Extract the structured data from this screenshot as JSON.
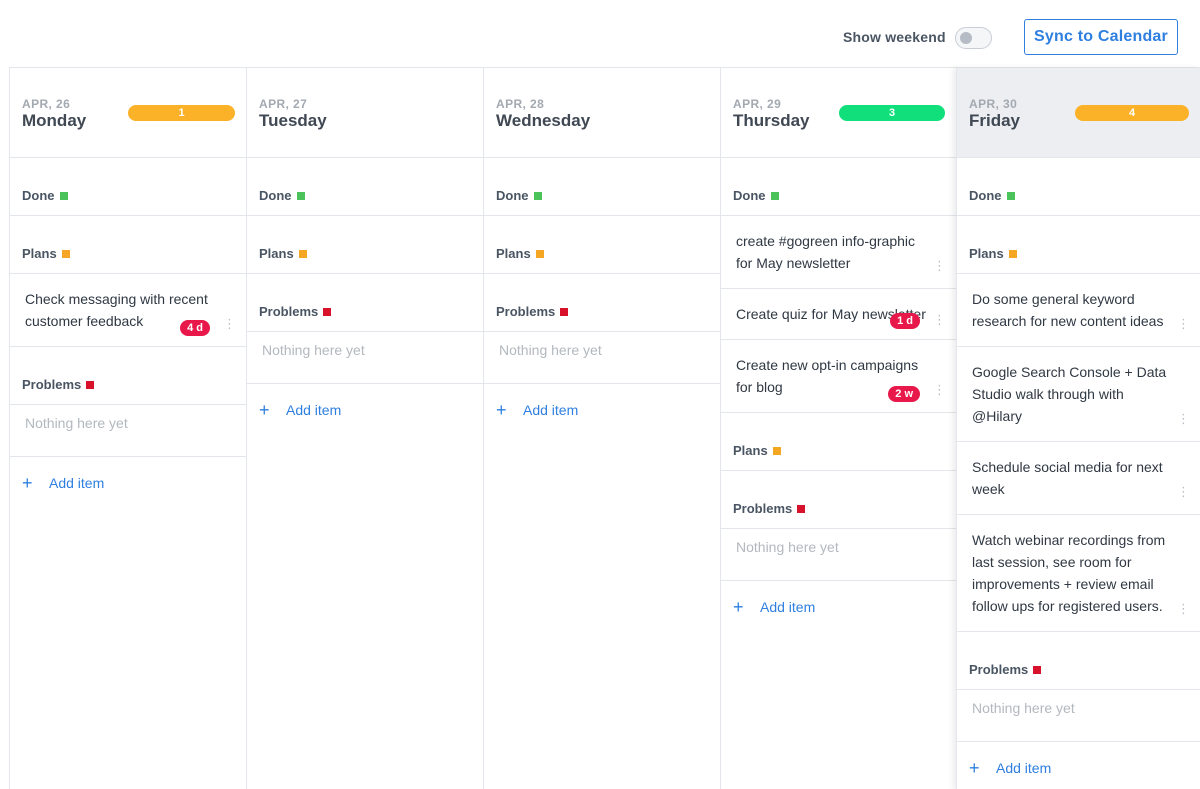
{
  "toolbar": {
    "show_weekend_label": "Show weekend",
    "show_weekend_on": false,
    "sync_button": "Sync to Calendar"
  },
  "colors": {
    "done": "#4cc35a",
    "plans": "#f5a623",
    "problems": "#d9122b",
    "accent": "#2e7fe0",
    "badge": "#e8194a",
    "count_orange": "#fbb228",
    "count_green": "#11df7b"
  },
  "labels": {
    "done": "Done",
    "plans": "Plans",
    "problems": "Problems",
    "empty": "Nothing here yet",
    "add_item": "Add item",
    "more_icon": "⋮",
    "plus_icon": "+"
  },
  "days": [
    {
      "date": "APR, 26",
      "name": "Monday",
      "count": "1",
      "count_color": "orange",
      "plans": [
        {
          "text": "Check messaging with recent customer feedback",
          "badge": "4 d"
        }
      ]
    },
    {
      "date": "APR, 27",
      "name": "Tuesday"
    },
    {
      "date": "APR, 28",
      "name": "Wednesday"
    },
    {
      "date": "APR, 29",
      "name": "Thursday",
      "count": "3",
      "count_color": "green",
      "done": [
        {
          "text": "create #gogreen info-graphic for May newsletter"
        },
        {
          "text": "Create quiz for May newsletter",
          "badge": "1 d"
        },
        {
          "text": "Create new opt-in campaigns for blog",
          "badge": "2 w"
        }
      ]
    },
    {
      "date": "APR, 30",
      "name": "Friday",
      "count": "4",
      "count_color": "orange",
      "today": true,
      "plans": [
        {
          "text": "Do some general keyword research for new content ideas"
        },
        {
          "text": "Google Search Console + Data Studio walk through with @Hilary"
        },
        {
          "text": "Schedule social media for next week"
        },
        {
          "text": "Watch webinar recordings from last session, see room for improvements + review email follow ups for registered users."
        }
      ]
    }
  ]
}
